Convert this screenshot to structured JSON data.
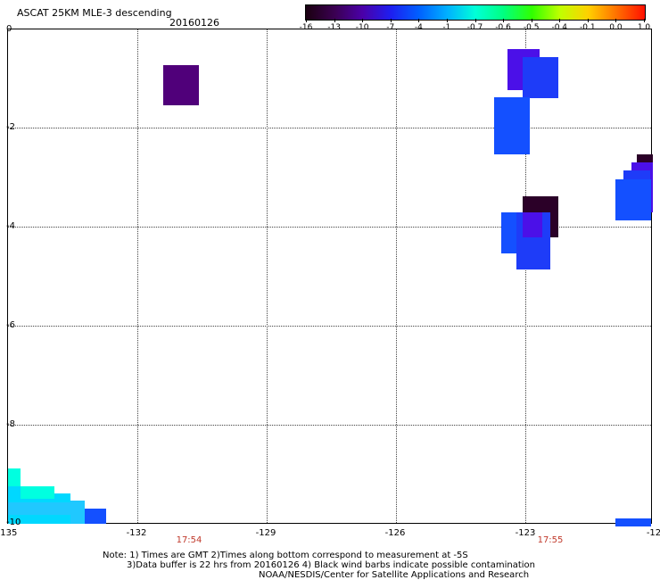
{
  "header": {
    "title": "ASCAT 25KM MLE-3 descending",
    "date": "20160126"
  },
  "colorbar": {
    "labels": [
      "-16",
      "-13",
      "-10",
      "-7",
      "-4",
      "-1",
      "-0.7",
      "-0.6",
      "-0.5",
      "-0.4",
      "-0.1",
      "0.0",
      "1.0"
    ],
    "colors": [
      "#1a0010",
      "#3a0050",
      "#4b00a8",
      "#1e1ef0",
      "#0060ff",
      "#00b0ff",
      "#00ffd8",
      "#00ff80",
      "#30ff00",
      "#c0ff00",
      "#ffd000",
      "#ff7000",
      "#ff1000"
    ]
  },
  "axes": {
    "x_labels": [
      "-135",
      "-132",
      "-129",
      "-126",
      "-123",
      "-12"
    ],
    "y_labels": [
      "0",
      "-2",
      "-4",
      "-6",
      "-8",
      "-10"
    ]
  },
  "times": [
    "17:54",
    "17:55"
  ],
  "footer": {
    "line1": "Note: 1) Times are GMT 2)Times along bottom correspond to measurement at -5S",
    "line2": "3)Data buffer is 22 hrs from 20160126 4) Black wind barbs indicate possible contamination",
    "line3": "NOAA/NESDIS/Center for Satellite Applications and Research"
  },
  "palette": {
    "purple": "#50007a",
    "dark": "#2b0028",
    "violet": "#4b10e8",
    "blue": "#1e3cf8",
    "bright_blue": "#1450ff",
    "cyan": "#00d8ff",
    "aqua": "#00ffe0",
    "light_cyan": "#20c8ff"
  }
}
